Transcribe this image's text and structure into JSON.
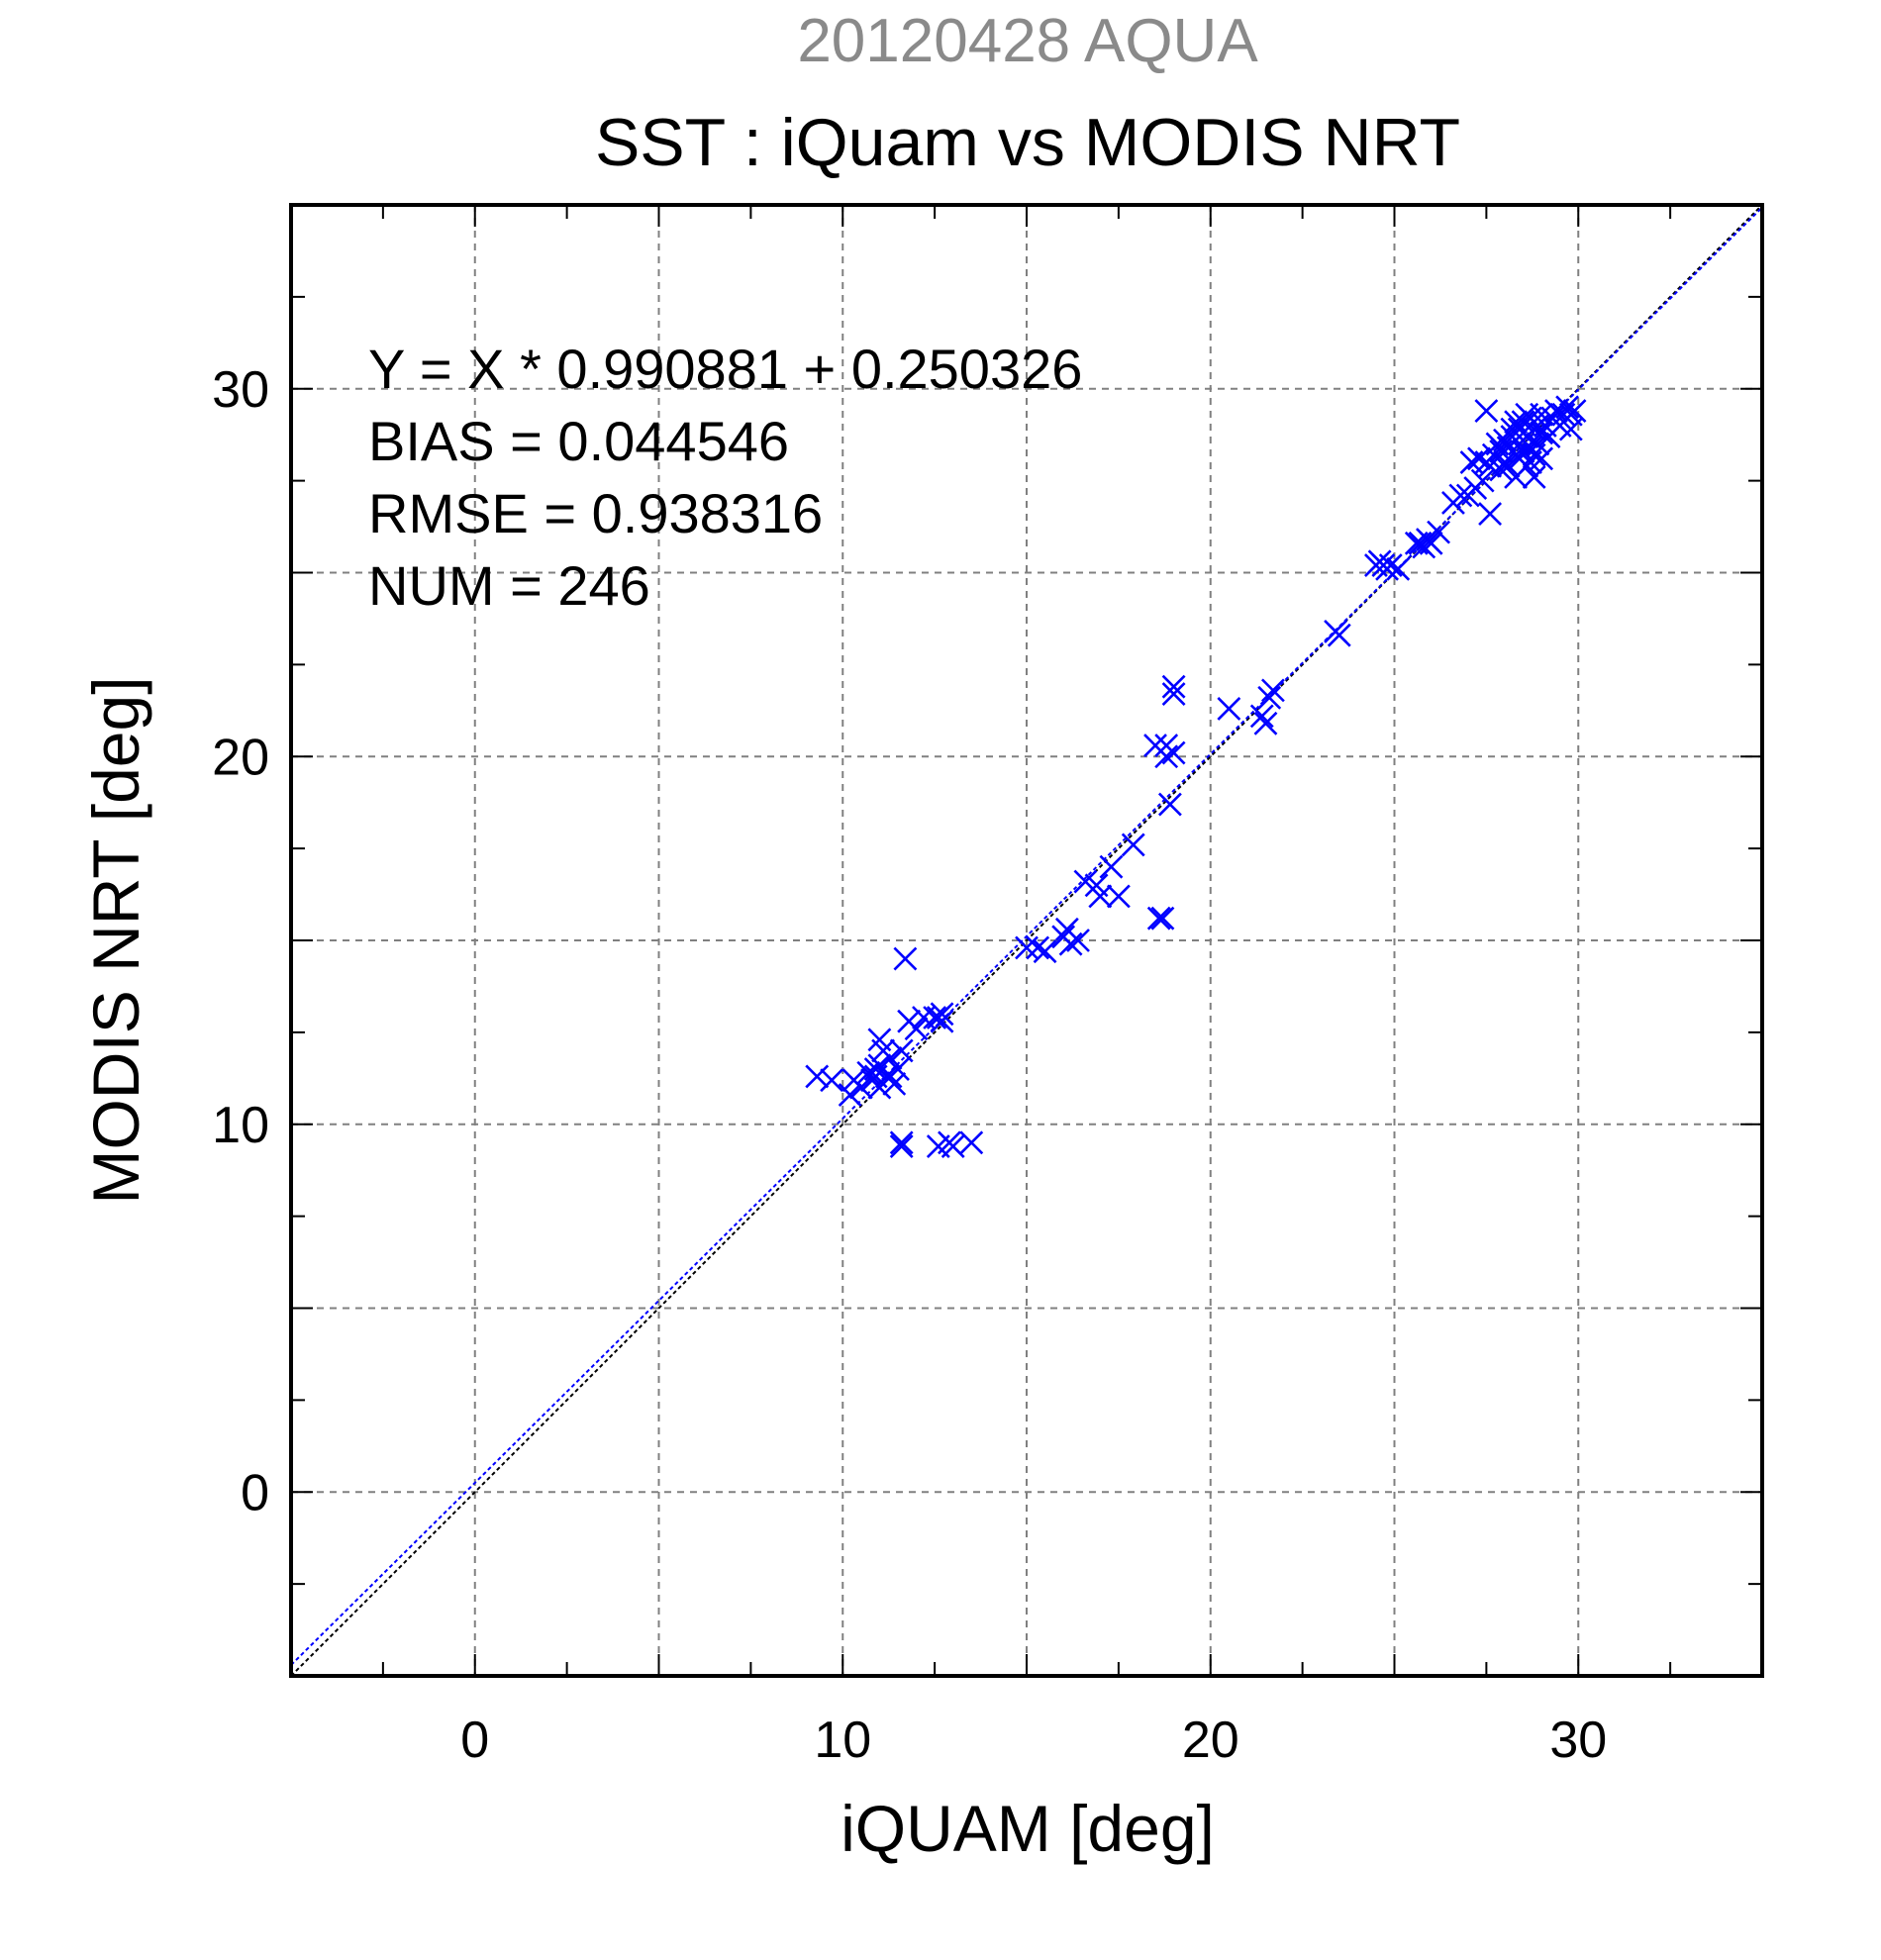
{
  "chart_data": {
    "type": "scatter",
    "title_top": "20120428 AQUA",
    "title": "SST : iQuam vs MODIS NRT",
    "xlabel": "iQUAM [deg]",
    "ylabel": "MODIS NRT [deg]",
    "xlim": [
      -5,
      35
    ],
    "ylim": [
      -5,
      35
    ],
    "xticks": [
      0,
      10,
      20,
      30
    ],
    "yticks": [
      0,
      10,
      20,
      30
    ],
    "grid": true,
    "marker": "x",
    "colors": {
      "points": "#0000ff",
      "fit_line": "#0000ff",
      "identity_line": "#000000",
      "grid": "#808080",
      "title_top": "#8a8a8a"
    },
    "fit": {
      "slope": 0.990881,
      "intercept": 0.250326
    },
    "stats": [
      "Y = X * 0.990881 + 0.250326",
      "BIAS = 0.044546",
      "RMSE = 0.938316",
      "NUM = 246"
    ],
    "series": [
      {
        "points": [
          [
            9.3,
            11.3
          ],
          [
            9.7,
            11.2
          ],
          [
            10.2,
            10.8
          ],
          [
            10.3,
            11.2
          ],
          [
            10.5,
            11.0
          ],
          [
            10.7,
            11.4
          ],
          [
            10.8,
            11.2
          ],
          [
            10.9,
            11.5
          ],
          [
            11.0,
            11.0
          ],
          [
            11.0,
            11.6
          ],
          [
            11.1,
            12.0
          ],
          [
            11.2,
            11.3
          ],
          [
            11.3,
            11.8
          ],
          [
            11.4,
            11.1
          ],
          [
            11.5,
            11.5
          ],
          [
            11.0,
            12.3
          ],
          [
            10.9,
            11.3
          ],
          [
            11.6,
            12.0
          ],
          [
            11.3,
            11.3
          ],
          [
            11.6,
            9.4
          ],
          [
            11.6,
            9.5
          ],
          [
            11.7,
            14.5
          ],
          [
            11.8,
            12.8
          ],
          [
            12.0,
            12.6
          ],
          [
            12.2,
            12.9
          ],
          [
            12.5,
            12.9
          ],
          [
            12.6,
            12.9
          ],
          [
            12.7,
            13.0
          ],
          [
            12.7,
            12.8
          ],
          [
            12.6,
            9.4
          ],
          [
            12.9,
            9.5
          ],
          [
            13.0,
            9.4
          ],
          [
            13.5,
            9.5
          ],
          [
            15.0,
            14.8
          ],
          [
            15.3,
            14.8
          ],
          [
            15.5,
            14.7
          ],
          [
            16.0,
            15.1
          ],
          [
            16.1,
            15.3
          ],
          [
            16.2,
            14.9
          ],
          [
            16.4,
            15.0
          ],
          [
            16.6,
            16.6
          ],
          [
            16.9,
            16.5
          ],
          [
            17.0,
            16.2
          ],
          [
            17.3,
            17.0
          ],
          [
            17.5,
            16.2
          ],
          [
            17.9,
            17.6
          ],
          [
            18.5,
            20.3
          ],
          [
            18.6,
            15.6
          ],
          [
            18.7,
            15.6
          ],
          [
            18.8,
            20.3
          ],
          [
            18.8,
            20.0
          ],
          [
            18.9,
            18.7
          ],
          [
            19.0,
            20.1
          ],
          [
            19.0,
            21.9
          ],
          [
            19.0,
            21.7
          ],
          [
            20.5,
            21.3
          ],
          [
            21.4,
            21.1
          ],
          [
            21.5,
            20.9
          ],
          [
            21.6,
            21.6
          ],
          [
            21.7,
            21.8
          ],
          [
            23.4,
            23.4
          ],
          [
            23.5,
            23.3
          ],
          [
            24.5,
            25.2
          ],
          [
            24.6,
            25.3
          ],
          [
            24.7,
            25.2
          ],
          [
            24.8,
            25.1
          ],
          [
            24.9,
            25.2
          ],
          [
            25.1,
            25.1
          ],
          [
            25.6,
            25.8
          ],
          [
            25.7,
            25.8
          ],
          [
            25.8,
            25.7
          ],
          [
            25.9,
            25.9
          ],
          [
            26.0,
            25.8
          ],
          [
            26.2,
            26.1
          ],
          [
            26.6,
            26.9
          ],
          [
            26.8,
            27.1
          ],
          [
            27.0,
            27.1
          ],
          [
            27.2,
            27.3
          ],
          [
            27.4,
            27.5
          ],
          [
            27.6,
            26.6
          ],
          [
            27.1,
            28.0
          ],
          [
            27.3,
            28.1
          ],
          [
            27.5,
            28.0
          ],
          [
            27.5,
            29.4
          ],
          [
            27.6,
            27.9
          ],
          [
            27.7,
            28.2
          ],
          [
            27.8,
            28.5
          ],
          [
            27.9,
            28.3
          ],
          [
            28.0,
            28.6
          ],
          [
            28.0,
            28.0
          ],
          [
            28.1,
            28.4
          ],
          [
            28.2,
            28.7
          ],
          [
            28.3,
            28.2
          ],
          [
            28.3,
            27.6
          ],
          [
            28.4,
            28.9
          ],
          [
            28.4,
            28.5
          ],
          [
            28.5,
            29.1
          ],
          [
            28.5,
            28.3
          ],
          [
            28.6,
            28.7
          ],
          [
            28.6,
            27.9
          ],
          [
            28.7,
            29.2
          ],
          [
            28.7,
            28.4
          ],
          [
            28.8,
            28.9
          ],
          [
            28.8,
            27.6
          ],
          [
            28.9,
            29.0
          ],
          [
            28.9,
            28.5
          ],
          [
            29.0,
            29.3
          ],
          [
            29.0,
            28.8
          ],
          [
            29.1,
            29.0
          ],
          [
            29.2,
            28.7
          ],
          [
            29.3,
            29.2
          ],
          [
            29.4,
            29.4
          ],
          [
            29.5,
            29.0
          ],
          [
            29.6,
            29.3
          ],
          [
            29.7,
            29.5
          ],
          [
            29.8,
            29.3
          ],
          [
            29.8,
            28.9
          ],
          [
            29.9,
            29.4
          ],
          [
            28.2,
            28.9
          ],
          [
            28.4,
            28.1
          ],
          [
            28.6,
            29.3
          ],
          [
            28.8,
            28.2
          ],
          [
            29.0,
            28.1
          ],
          [
            27.9,
            27.8
          ],
          [
            28.1,
            27.9
          ],
          [
            28.3,
            29.1
          ],
          [
            28.5,
            28.8
          ],
          [
            28.7,
            28.0
          ]
        ]
      }
    ]
  }
}
